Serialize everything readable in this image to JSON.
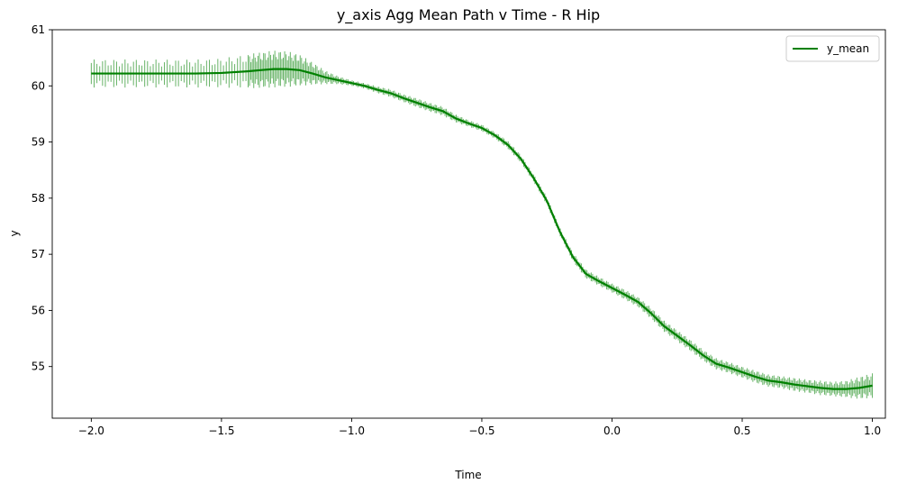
{
  "chart_data": {
    "type": "line",
    "title": "y_axis Agg Mean Path v Time - R Hip",
    "xlabel": "Time",
    "ylabel": "y",
    "xlim": [
      -2.15,
      1.05
    ],
    "ylim": [
      54.08,
      61.0
    ],
    "xticks": [
      -2.0,
      -1.5,
      -1.0,
      -0.5,
      0.0,
      0.5,
      1.0
    ],
    "xtick_labels": [
      "−2.0",
      "−1.5",
      "−1.0",
      "−0.5",
      "0.0",
      "0.5",
      "1.0"
    ],
    "yticks": [
      55,
      56,
      57,
      58,
      59,
      60,
      61
    ],
    "ytick_labels": [
      "55",
      "56",
      "57",
      "58",
      "59",
      "60",
      "61"
    ],
    "grid": false,
    "legend_position": "top-right",
    "line_color": "#008000",
    "errorbar_color": "#4ca64c",
    "series": [
      {
        "name": "y_mean",
        "x": [
          -2.0,
          -1.9,
          -1.8,
          -1.7,
          -1.6,
          -1.5,
          -1.4,
          -1.35,
          -1.3,
          -1.25,
          -1.2,
          -1.15,
          -1.1,
          -1.05,
          -1.0,
          -0.95,
          -0.9,
          -0.85,
          -0.8,
          -0.75,
          -0.7,
          -0.65,
          -0.6,
          -0.55,
          -0.5,
          -0.45,
          -0.4,
          -0.35,
          -0.3,
          -0.25,
          -0.2,
          -0.15,
          -0.1,
          -0.05,
          0.0,
          0.05,
          0.1,
          0.15,
          0.2,
          0.25,
          0.3,
          0.35,
          0.4,
          0.45,
          0.5,
          0.55,
          0.6,
          0.65,
          0.7,
          0.75,
          0.8,
          0.85,
          0.9,
          0.95,
          1.0
        ],
        "y": [
          60.22,
          60.22,
          60.22,
          60.22,
          60.22,
          60.23,
          60.26,
          60.28,
          60.3,
          60.3,
          60.28,
          60.22,
          60.15,
          60.1,
          60.05,
          60.0,
          59.93,
          59.87,
          59.78,
          59.7,
          59.62,
          59.55,
          59.42,
          59.33,
          59.25,
          59.12,
          58.95,
          58.7,
          58.35,
          57.95,
          57.4,
          56.95,
          56.65,
          56.52,
          56.4,
          56.28,
          56.15,
          55.95,
          55.72,
          55.55,
          55.38,
          55.2,
          55.05,
          54.98,
          54.9,
          54.82,
          54.75,
          54.72,
          54.68,
          54.65,
          54.62,
          54.6,
          54.6,
          54.62,
          54.66
        ],
        "err": [
          0.25,
          0.25,
          0.25,
          0.25,
          0.25,
          0.26,
          0.3,
          0.32,
          0.33,
          0.32,
          0.28,
          0.2,
          0.12,
          0.07,
          0.05,
          0.05,
          0.06,
          0.07,
          0.07,
          0.08,
          0.08,
          0.08,
          0.07,
          0.06,
          0.06,
          0.06,
          0.07,
          0.07,
          0.07,
          0.07,
          0.07,
          0.08,
          0.08,
          0.08,
          0.08,
          0.09,
          0.09,
          0.1,
          0.1,
          0.1,
          0.1,
          0.1,
          0.1,
          0.1,
          0.1,
          0.11,
          0.11,
          0.11,
          0.12,
          0.12,
          0.13,
          0.13,
          0.15,
          0.2,
          0.22
        ]
      }
    ]
  }
}
